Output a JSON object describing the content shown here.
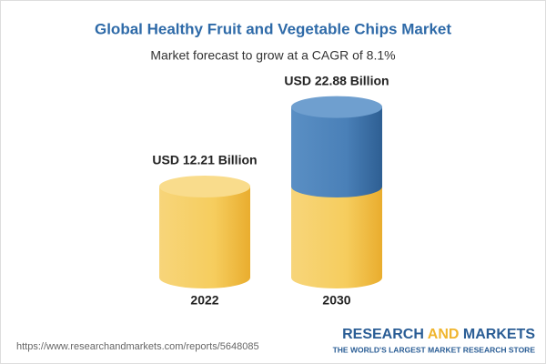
{
  "chart_data": {
    "type": "cylinder",
    "title": "Global Healthy Fruit and Vegetable Chips Market",
    "subtitle": "Market forecast to grow at a CAGR of 8.1%",
    "categories": [
      "2022",
      "2030"
    ],
    "values": [
      12.21,
      22.88
    ],
    "value_labels": [
      "USD 12.21 Billion",
      "USD 22.88 Billion"
    ],
    "base_color": "#f3c34c",
    "growth_color": "#3d74ad"
  },
  "footer": {
    "url": "https://www.researchandmarkets.com/reports/5648085",
    "logo_words": [
      "RESEARCH",
      "AND",
      "MARKETS"
    ],
    "tagline": "THE WORLD'S LARGEST MARKET RESEARCH STORE"
  }
}
